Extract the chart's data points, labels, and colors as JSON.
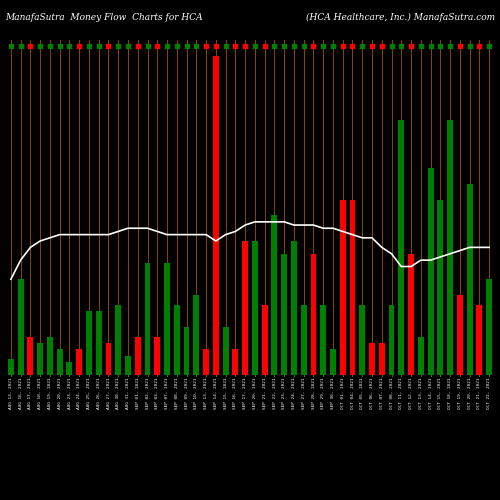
{
  "title_left": "ManafaSutra  Money Flow  Charts for HCA",
  "title_right": "(HCA Healthcare, Inc.) ManafaSutra.com",
  "background_color": "#000000",
  "bar_colors": [
    "green",
    "green",
    "red",
    "green",
    "green",
    "green",
    "green",
    "red",
    "green",
    "green",
    "red",
    "green",
    "green",
    "red",
    "green",
    "red",
    "green",
    "green",
    "green",
    "green",
    "red",
    "red",
    "green",
    "red",
    "red",
    "green",
    "red",
    "green",
    "green",
    "green",
    "green",
    "red",
    "green",
    "green",
    "red",
    "red",
    "green",
    "red",
    "red",
    "green",
    "green",
    "red",
    "green",
    "green",
    "green",
    "green",
    "red",
    "green",
    "red",
    "green"
  ],
  "bar_heights": [
    0.05,
    0.3,
    0.12,
    0.1,
    0.12,
    0.08,
    0.04,
    0.08,
    0.2,
    0.2,
    0.1,
    0.22,
    0.06,
    0.12,
    0.35,
    0.12,
    0.35,
    0.22,
    0.15,
    0.25,
    0.08,
    1.0,
    0.15,
    0.08,
    0.42,
    0.42,
    0.22,
    0.5,
    0.38,
    0.42,
    0.22,
    0.38,
    0.22,
    0.08,
    0.55,
    0.55,
    0.22,
    0.1,
    0.1,
    0.22,
    0.8,
    0.38,
    0.12,
    0.65,
    0.55,
    0.8,
    0.25,
    0.6,
    0.22,
    0.3
  ],
  "line_values": [
    0.3,
    0.36,
    0.4,
    0.42,
    0.43,
    0.44,
    0.44,
    0.44,
    0.44,
    0.44,
    0.44,
    0.45,
    0.46,
    0.46,
    0.46,
    0.45,
    0.44,
    0.44,
    0.44,
    0.44,
    0.44,
    0.42,
    0.44,
    0.45,
    0.47,
    0.48,
    0.48,
    0.48,
    0.48,
    0.47,
    0.47,
    0.47,
    0.46,
    0.46,
    0.45,
    0.44,
    0.43,
    0.43,
    0.4,
    0.38,
    0.34,
    0.34,
    0.36,
    0.36,
    0.37,
    0.38,
    0.39,
    0.4,
    0.4,
    0.4
  ],
  "x_labels": [
    "AUG 13, 2021",
    "AUG 16, 2021",
    "AUG 17, 2021",
    "AUG 18, 2021",
    "AUG 19, 2021",
    "AUG 20, 2021",
    "AUG 23, 2021",
    "AUG 24, 2021",
    "AUG 25, 2021",
    "AUG 26, 2021",
    "AUG 27, 2021",
    "AUG 30, 2021",
    "AUG 31, 2021",
    "SEP 01, 2021",
    "SEP 02, 2021",
    "SEP 03, 2021",
    "SEP 07, 2021",
    "SEP 08, 2021",
    "SEP 09, 2021",
    "SEP 10, 2021",
    "SEP 13, 2021",
    "SEP 14, 2021",
    "SEP 15, 2021",
    "SEP 16, 2021",
    "SEP 17, 2021",
    "SEP 20, 2021",
    "SEP 21, 2021",
    "SEP 22, 2021",
    "SEP 23, 2021",
    "SEP 24, 2021",
    "SEP 27, 2021",
    "SEP 28, 2021",
    "SEP 29, 2021",
    "SEP 30, 2021",
    "OCT 01, 2021",
    "OCT 04, 2021",
    "OCT 05, 2021",
    "OCT 06, 2021",
    "OCT 07, 2021",
    "OCT 08, 2021",
    "OCT 11, 2021",
    "OCT 12, 2021",
    "OCT 13, 2021",
    "OCT 14, 2021",
    "OCT 15, 2021",
    "OCT 18, 2021",
    "OCT 19, 2021",
    "OCT 20, 2021",
    "OCT 21, 2021",
    "OCT 22, 2021"
  ],
  "vline_color": "#8B4500",
  "line_color": "#ffffff",
  "ylim": [
    0,
    1.05
  ],
  "bar_width": 0.6,
  "title_fontsize": 6.5,
  "xlabel_fontsize": 3.2
}
